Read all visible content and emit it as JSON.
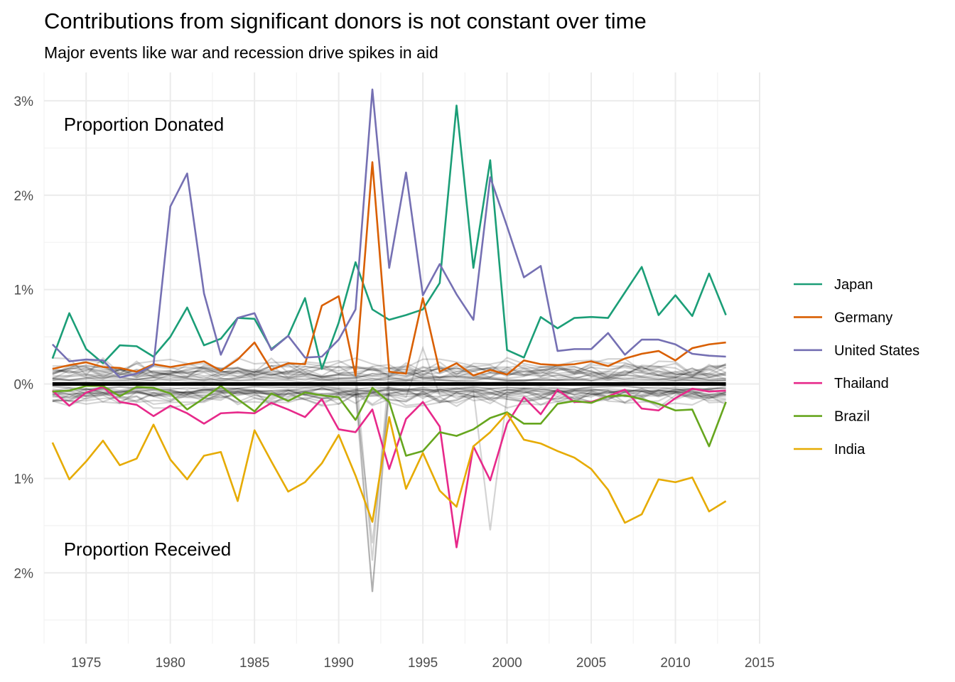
{
  "chart_data": {
    "type": "line",
    "title": "Contributions from significant donors is not constant over time",
    "subtitle": "Major events like war and recession drive spikes in aid",
    "xlabel": "",
    "ylabel": "",
    "xlim": [
      1972.5,
      2015
    ],
    "ylim": [
      -2.75,
      3.3
    ],
    "x_ticks": [
      1975,
      1980,
      1985,
      1990,
      1995,
      2000,
      2005,
      2010,
      2015
    ],
    "y_ticks": [
      {
        "value": 3,
        "label": "3%"
      },
      {
        "value": 2,
        "label": "2%"
      },
      {
        "value": 1,
        "label": "1%"
      },
      {
        "value": 0,
        "label": "0%"
      },
      {
        "value": -1,
        "label": "1%"
      },
      {
        "value": -2,
        "label": "2%"
      }
    ],
    "annotations": [
      {
        "text": "Proportion Donated",
        "x": 1973.5,
        "y": 2.75
      },
      {
        "text": "Proportion Received",
        "x": 1973.5,
        "y": -1.75
      }
    ],
    "grid": true,
    "legend_position": "right",
    "x": [
      1973,
      1974,
      1975,
      1976,
      1977,
      1978,
      1979,
      1980,
      1981,
      1982,
      1983,
      1984,
      1985,
      1986,
      1987,
      1988,
      1989,
      1990,
      1991,
      1992,
      1993,
      1994,
      1995,
      1996,
      1997,
      1998,
      1999,
      2000,
      2001,
      2002,
      2003,
      2004,
      2005,
      2006,
      2007,
      2008,
      2009,
      2010,
      2011,
      2012,
      2013
    ],
    "series": [
      {
        "name": "Japan",
        "color": "#1b9e77",
        "values": [
          0.27,
          0.75,
          0.37,
          0.22,
          0.41,
          0.4,
          0.29,
          0.5,
          0.81,
          0.41,
          0.48,
          0.7,
          0.69,
          0.37,
          0.51,
          0.91,
          0.16,
          0.65,
          1.29,
          0.79,
          0.68,
          0.73,
          0.79,
          1.07,
          2.95,
          1.23,
          2.37,
          0.36,
          0.28,
          0.71,
          0.59,
          0.7,
          0.71,
          0.7,
          0.97,
          1.24,
          0.73,
          0.94,
          0.72,
          1.17,
          0.73
        ]
      },
      {
        "name": "Germany",
        "color": "#d95f02",
        "values": [
          0.16,
          0.2,
          0.23,
          0.18,
          0.17,
          0.13,
          0.21,
          0.18,
          0.21,
          0.24,
          0.14,
          0.26,
          0.44,
          0.15,
          0.22,
          0.21,
          0.83,
          0.93,
          0.09,
          2.35,
          0.13,
          0.11,
          0.91,
          0.13,
          0.22,
          0.09,
          0.15,
          0.1,
          0.25,
          0.21,
          0.2,
          0.21,
          0.24,
          0.19,
          0.27,
          0.32,
          0.35,
          0.25,
          0.38,
          0.42,
          0.44
        ]
      },
      {
        "name": "United States",
        "color": "#7570b3",
        "values": [
          0.42,
          0.24,
          0.26,
          0.25,
          0.07,
          0.11,
          0.2,
          1.88,
          2.23,
          0.96,
          0.31,
          0.7,
          0.75,
          0.36,
          0.51,
          0.28,
          0.29,
          0.47,
          0.79,
          3.12,
          1.23,
          2.24,
          0.94,
          1.27,
          0.95,
          0.68,
          2.19,
          1.67,
          1.13,
          1.25,
          0.35,
          0.37,
          0.37,
          0.54,
          0.31,
          0.47,
          0.47,
          0.42,
          0.32,
          0.3,
          0.29
        ]
      },
      {
        "name": "Thailand",
        "color": "#e7298a",
        "values": [
          -0.07,
          -0.23,
          -0.09,
          -0.03,
          -0.19,
          -0.22,
          -0.34,
          -0.23,
          -0.31,
          -0.42,
          -0.31,
          -0.3,
          -0.31,
          -0.2,
          -0.27,
          -0.35,
          -0.16,
          -0.48,
          -0.51,
          -0.27,
          -0.9,
          -0.37,
          -0.19,
          -0.45,
          -1.73,
          -0.66,
          -1.02,
          -0.42,
          -0.14,
          -0.32,
          -0.06,
          -0.19,
          -0.19,
          -0.13,
          -0.06,
          -0.26,
          -0.28,
          -0.15,
          -0.05,
          -0.08,
          -0.07
        ]
      },
      {
        "name": "Brazil",
        "color": "#66a61e",
        "values": [
          -0.08,
          -0.07,
          -0.02,
          -0.02,
          -0.13,
          -0.03,
          -0.04,
          -0.1,
          -0.27,
          -0.15,
          -0.02,
          -0.16,
          -0.29,
          -0.1,
          -0.18,
          -0.09,
          -0.12,
          -0.14,
          -0.38,
          -0.04,
          -0.19,
          -0.76,
          -0.71,
          -0.51,
          -0.55,
          -0.48,
          -0.36,
          -0.3,
          -0.42,
          -0.42,
          -0.21,
          -0.18,
          -0.2,
          -0.13,
          -0.12,
          -0.16,
          -0.21,
          -0.28,
          -0.27,
          -0.66,
          -0.19
        ]
      },
      {
        "name": "India",
        "color": "#e6ab02",
        "values": [
          -0.62,
          -1.01,
          -0.82,
          -0.6,
          -0.86,
          -0.79,
          -0.43,
          -0.8,
          -1.01,
          -0.76,
          -0.72,
          -1.24,
          -0.49,
          -0.82,
          -1.14,
          -1.04,
          -0.84,
          -0.54,
          -0.97,
          -1.46,
          -0.35,
          -1.11,
          -0.73,
          -1.13,
          -1.3,
          -0.66,
          -0.51,
          -0.31,
          -0.59,
          -0.63,
          -0.71,
          -0.78,
          -0.9,
          -1.12,
          -1.47,
          -1.38,
          -1.01,
          -1.04,
          -0.99,
          -1.35,
          -1.24
        ]
      }
    ]
  }
}
